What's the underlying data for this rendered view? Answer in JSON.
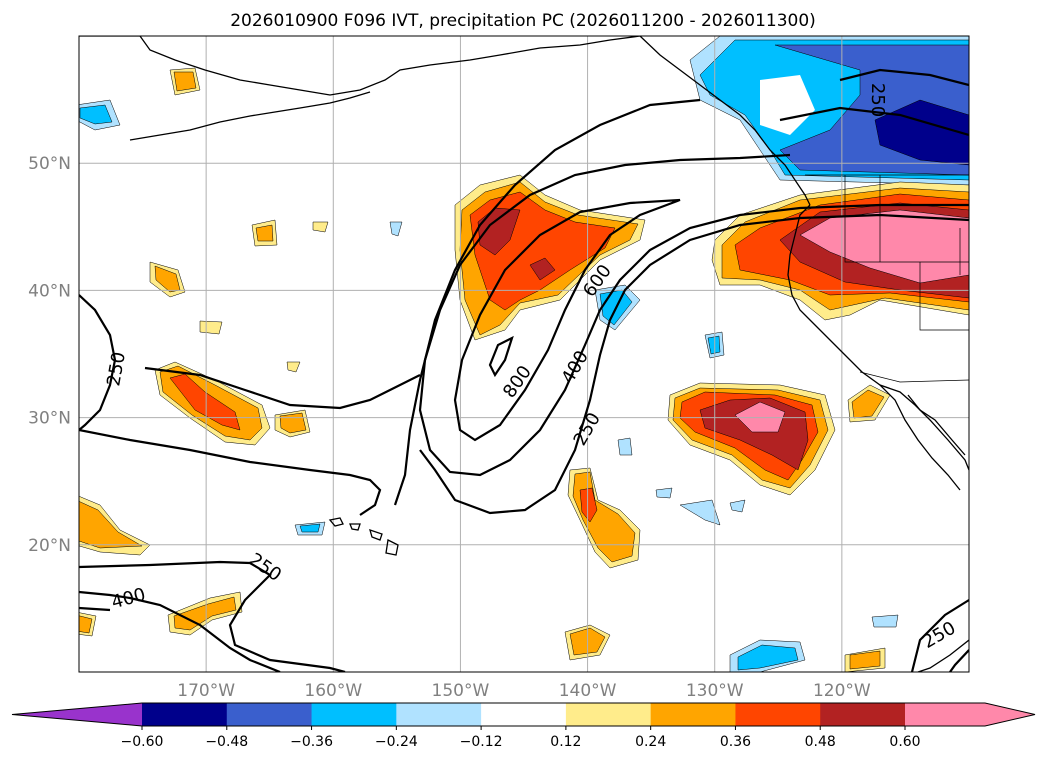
{
  "chart_data": {
    "type": "contour-map",
    "title": "2026010900 F096 IVT, precipitation PC (2026011200 - 2026011300)",
    "extent": {
      "lon": [
        -180,
        -110
      ],
      "lat": [
        10,
        60
      ]
    },
    "lat_ticks": [
      {
        "value": 50,
        "label": "50°N"
      },
      {
        "value": 40,
        "label": "40°N"
      },
      {
        "value": 30,
        "label": "30°N"
      },
      {
        "value": 20,
        "label": "20°N"
      }
    ],
    "lon_ticks": [
      {
        "value": -170,
        "label": "170°W"
      },
      {
        "value": -160,
        "label": "160°W"
      },
      {
        "value": -150,
        "label": "150°W"
      },
      {
        "value": -140,
        "label": "140°W"
      },
      {
        "value": -130,
        "label": "130°W"
      },
      {
        "value": -120,
        "label": "120°W"
      }
    ],
    "ivt_contour_levels": [
      250,
      400,
      600,
      800
    ],
    "ivt_contour_labels": [
      "250",
      "250",
      "250",
      "250",
      "400",
      "400",
      "600",
      "800"
    ],
    "colorbar": {
      "ticks": [
        "−0.60",
        "−0.48",
        "−0.36",
        "−0.24",
        "−0.12",
        "0.12",
        "0.24",
        "0.36",
        "0.48",
        "0.60"
      ],
      "under_color": "#9933cc",
      "over_color": "#ff88aa",
      "colors": [
        "#00008b",
        "#3a5fcd",
        "#00bfff",
        "#b0e2ff",
        "#ffffff",
        "#ffec8b",
        "#ffa500",
        "#ff4500",
        "#b22222"
      ]
    },
    "levels": {
      "pos1": "#ffec8b",
      "pos2": "#ffa500",
      "pos3": "#ff4500",
      "pos4": "#b22222",
      "pos5": "#ff88aa",
      "neg1": "#b0e2ff",
      "neg2": "#00bfff",
      "neg3": "#3a5fcd",
      "neg4": "#00008b"
    }
  }
}
